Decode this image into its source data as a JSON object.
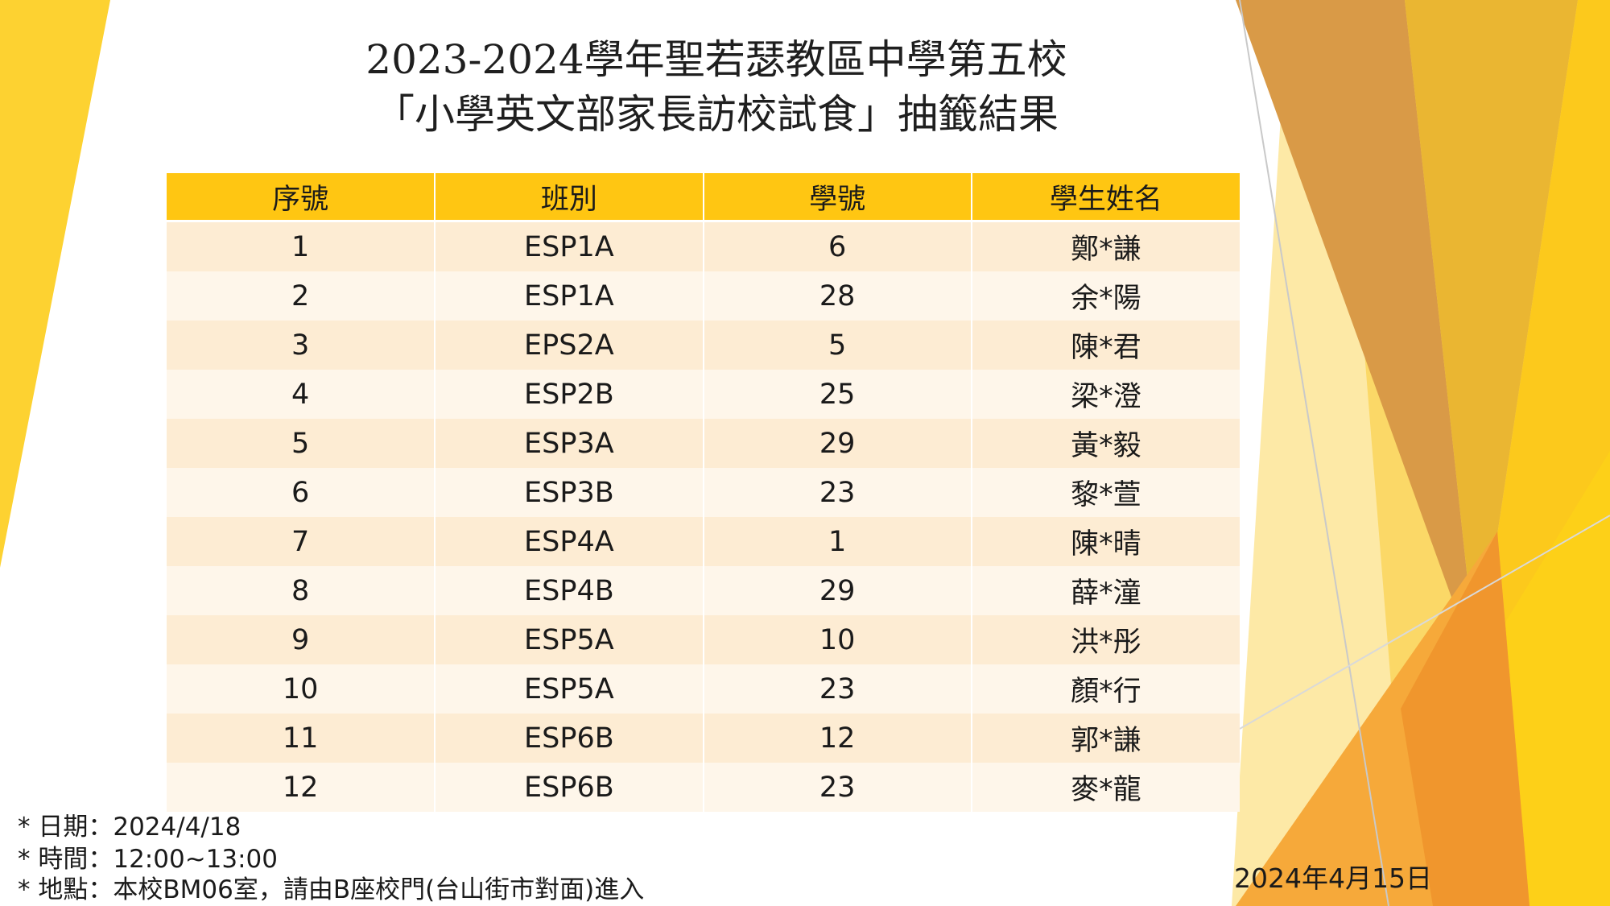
{
  "slide": {
    "title_line1": "2023-2024學年聖若瑟教區中學第五校",
    "title_line2": "「小學英文部家長訪校試食」抽籤結果",
    "table": {
      "headers": [
        "序號",
        "班別",
        "學號",
        "學生姓名"
      ],
      "rows": [
        [
          "1",
          "ESP1A",
          "6",
          "鄭*謙"
        ],
        [
          "2",
          "ESP1A",
          "28",
          "余*陽"
        ],
        [
          "3",
          "EPS2A",
          "5",
          "陳*君"
        ],
        [
          "4",
          "ESP2B",
          "25",
          "梁*澄"
        ],
        [
          "5",
          "ESP3A",
          "29",
          "黃*毅"
        ],
        [
          "6",
          "ESP3B",
          "23",
          "黎*萱"
        ],
        [
          "7",
          "ESP4A",
          "1",
          "陳*晴"
        ],
        [
          "8",
          "ESP4B",
          "29",
          "薛*潼"
        ],
        [
          "9",
          "ESP5A",
          "10",
          "洪*彤"
        ],
        [
          "10",
          "ESP5A",
          "23",
          "顏*行"
        ],
        [
          "11",
          "ESP6B",
          "12",
          "郭*謙"
        ],
        [
          "12",
          "ESP6B",
          "23",
          "麥*龍"
        ]
      ]
    },
    "notes": [
      "* 日期：2024/4/18",
      "* 時間：12:00~13:00",
      "* 地點：本校BM06室，請由B座校門(台山街市對面)進入"
    ],
    "date": "2024年4月15日"
  },
  "colors": {
    "header_fill": "#ffc612",
    "row_odd": "#fdecd3",
    "row_even": "#fef6ea",
    "accent_yellow": "#ffd21f",
    "accent_orange": "#e08a2a"
  }
}
